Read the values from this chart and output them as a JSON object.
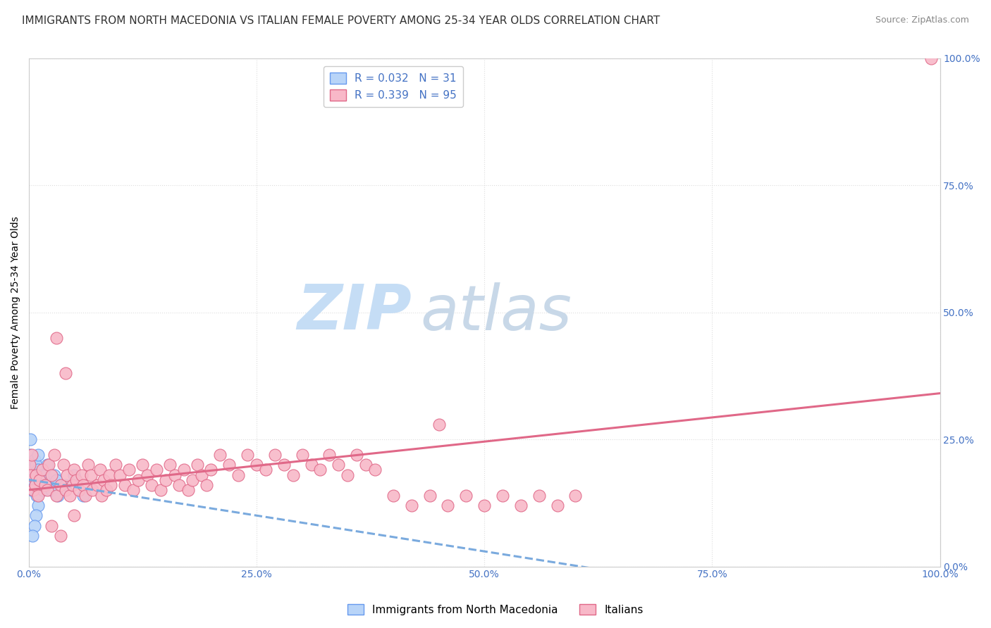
{
  "title": "IMMIGRANTS FROM NORTH MACEDONIA VS ITALIAN FEMALE POVERTY AMONG 25-34 YEAR OLDS CORRELATION CHART",
  "source": "Source: ZipAtlas.com",
  "ylabel": "Female Poverty Among 25-34 Year Olds",
  "xlim": [
    0,
    1.0
  ],
  "ylim": [
    0,
    1.0
  ],
  "xticks": [
    0.0,
    0.25,
    0.5,
    0.75,
    1.0
  ],
  "yticks": [
    0.0,
    0.25,
    0.5,
    0.75,
    1.0
  ],
  "xtick_labels": [
    "0.0%",
    "25.0%",
    "50.0%",
    "75.0%",
    "100.0%"
  ],
  "ytick_labels": [
    "0.0%",
    "25.0%",
    "50.0%",
    "75.0%",
    "100.0%"
  ],
  "legend_entries": [
    "Immigrants from North Macedonia",
    "Italians"
  ],
  "series": [
    {
      "name": "Immigrants from North Macedonia",
      "R": 0.032,
      "N": 31,
      "color": "#b8d4f8",
      "edge_color": "#6699ee",
      "regression_color": "#7aaade",
      "regression_style": "--",
      "x": [
        0.001,
        0.002,
        0.002,
        0.003,
        0.003,
        0.004,
        0.005,
        0.006,
        0.007,
        0.008,
        0.009,
        0.01,
        0.01,
        0.012,
        0.013,
        0.015,
        0.016,
        0.018,
        0.02,
        0.022,
        0.025,
        0.028,
        0.03,
        0.032,
        0.01,
        0.008,
        0.006,
        0.004,
        0.05,
        0.06,
        0.04
      ],
      "y": [
        0.22,
        0.25,
        0.18,
        0.2,
        0.15,
        0.19,
        0.17,
        0.21,
        0.16,
        0.2,
        0.14,
        0.19,
        0.22,
        0.16,
        0.18,
        0.17,
        0.15,
        0.18,
        0.2,
        0.16,
        0.15,
        0.18,
        0.17,
        0.14,
        0.12,
        0.1,
        0.08,
        0.06,
        0.18,
        0.14,
        0.16
      ]
    },
    {
      "name": "Italians",
      "R": 0.339,
      "N": 95,
      "color": "#f8b8c8",
      "edge_color": "#e06888",
      "regression_color": "#e06888",
      "regression_style": "-",
      "x": [
        0.001,
        0.002,
        0.003,
        0.005,
        0.007,
        0.008,
        0.01,
        0.012,
        0.015,
        0.018,
        0.02,
        0.022,
        0.025,
        0.028,
        0.03,
        0.035,
        0.038,
        0.04,
        0.042,
        0.045,
        0.048,
        0.05,
        0.052,
        0.055,
        0.058,
        0.06,
        0.062,
        0.065,
        0.068,
        0.07,
        0.075,
        0.078,
        0.08,
        0.082,
        0.085,
        0.088,
        0.09,
        0.095,
        0.1,
        0.105,
        0.11,
        0.115,
        0.12,
        0.125,
        0.13,
        0.135,
        0.14,
        0.145,
        0.15,
        0.155,
        0.16,
        0.165,
        0.17,
        0.175,
        0.18,
        0.185,
        0.19,
        0.195,
        0.2,
        0.21,
        0.22,
        0.23,
        0.24,
        0.25,
        0.26,
        0.27,
        0.28,
        0.29,
        0.3,
        0.31,
        0.32,
        0.33,
        0.34,
        0.35,
        0.36,
        0.37,
        0.38,
        0.4,
        0.42,
        0.44,
        0.46,
        0.48,
        0.5,
        0.52,
        0.54,
        0.56,
        0.58,
        0.6,
        0.03,
        0.04,
        0.05,
        0.025,
        0.035,
        0.99,
        0.45
      ],
      "y": [
        0.2,
        0.18,
        0.22,
        0.15,
        0.16,
        0.18,
        0.14,
        0.17,
        0.19,
        0.16,
        0.15,
        0.2,
        0.18,
        0.22,
        0.14,
        0.16,
        0.2,
        0.15,
        0.18,
        0.14,
        0.16,
        0.19,
        0.17,
        0.15,
        0.18,
        0.16,
        0.14,
        0.2,
        0.18,
        0.15,
        0.16,
        0.19,
        0.14,
        0.17,
        0.15,
        0.18,
        0.16,
        0.2,
        0.18,
        0.16,
        0.19,
        0.15,
        0.17,
        0.2,
        0.18,
        0.16,
        0.19,
        0.15,
        0.17,
        0.2,
        0.18,
        0.16,
        0.19,
        0.15,
        0.17,
        0.2,
        0.18,
        0.16,
        0.19,
        0.22,
        0.2,
        0.18,
        0.22,
        0.2,
        0.19,
        0.22,
        0.2,
        0.18,
        0.22,
        0.2,
        0.19,
        0.22,
        0.2,
        0.18,
        0.22,
        0.2,
        0.19,
        0.14,
        0.12,
        0.14,
        0.12,
        0.14,
        0.12,
        0.14,
        0.12,
        0.14,
        0.12,
        0.14,
        0.45,
        0.38,
        0.1,
        0.08,
        0.06,
        1.0,
        0.28
      ]
    }
  ],
  "watermark_zip": "ZIP",
  "watermark_atlas": "atlas",
  "watermark_color_zip": "#c5ddf5",
  "watermark_color_atlas": "#c8d8e8",
  "background_color": "#ffffff",
  "grid_color": "#dddddd",
  "title_fontsize": 11,
  "axis_label_fontsize": 10,
  "tick_fontsize": 10,
  "legend_fontsize": 11,
  "tick_color": "#4472c4"
}
